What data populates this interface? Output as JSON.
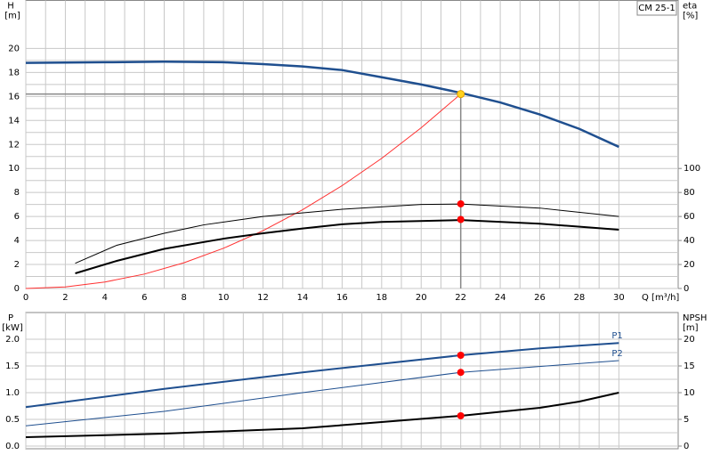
{
  "chart_data": [
    {
      "type": "line",
      "model": "CM 25-1",
      "ylabel": "H",
      "yunit": "[m]",
      "y2label": "eta",
      "y2unit": "[%]",
      "xlabel": "Q [m³/h]",
      "xlim": [
        0,
        33
      ],
      "xticks": [
        0,
        2,
        4,
        6,
        8,
        10,
        12,
        14,
        16,
        18,
        20,
        22,
        24,
        26,
        28,
        30
      ],
      "ylim": [
        0,
        24
      ],
      "yticks": [
        0,
        2,
        4,
        6,
        8,
        10,
        12,
        14,
        16,
        18,
        20
      ],
      "y2lim": [
        0,
        240
      ],
      "y2ticks": [
        0,
        20,
        40,
        60,
        80,
        100
      ],
      "grid": true,
      "minor_grid": true,
      "xtick_labels": true,
      "series": [
        {
          "color": "#1f4f8f",
          "line_width": 2.5,
          "x": [
            0,
            4,
            7,
            10,
            12,
            14,
            16,
            18,
            20,
            22,
            24,
            26,
            28,
            30
          ],
          "values": [
            18.8,
            18.85,
            18.9,
            18.85,
            18.7,
            18.5,
            18.2,
            17.6,
            17.0,
            16.3,
            15.5,
            14.5,
            13.3,
            11.8
          ]
        },
        {
          "color": "#ff3030",
          "line_width": 1,
          "x": [
            0,
            2,
            4,
            6,
            8,
            10,
            12,
            14,
            16,
            18,
            20,
            22
          ],
          "values": [
            0,
            0.13,
            0.54,
            1.2,
            2.14,
            3.35,
            4.82,
            6.56,
            8.57,
            10.84,
            13.39,
            16.2
          ]
        },
        {
          "color": "#000000",
          "line_width": 1,
          "axis": "y2",
          "x": [
            2.5,
            4.6,
            7,
            9,
            12,
            16,
            20,
            22,
            26,
            30
          ],
          "values": [
            21,
            36,
            46,
            53,
            60,
            66,
            70,
            70.4,
            67,
            60
          ]
        },
        {
          "color": "#000000",
          "line_width": 2,
          "axis": "y2",
          "x": [
            2.5,
            4.6,
            7,
            10,
            12,
            14,
            16,
            18,
            22,
            26,
            30
          ],
          "values": [
            12.6,
            23,
            33,
            41.5,
            46,
            50,
            53.5,
            55.5,
            57,
            54,
            49
          ]
        },
        {
          "color": "#ffd21f",
          "marker": true,
          "guides": true,
          "x": [
            22
          ],
          "values": [
            16.2
          ]
        },
        {
          "color": "#ff0000",
          "marker": true,
          "axis": "y2",
          "x": [
            22,
            22
          ],
          "values": [
            70.5,
            57.5
          ]
        }
      ]
    },
    {
      "type": "line",
      "ylabel": "P",
      "yunit": "[kW]",
      "y2label": "NPSH",
      "y2unit": "[m]",
      "xlim": [
        0,
        33
      ],
      "xticks": [
        0,
        2,
        4,
        6,
        8,
        10,
        12,
        14,
        16,
        18,
        20,
        22,
        24,
        26,
        28,
        30
      ],
      "ylim": [
        -0.05,
        2.5
      ],
      "yticks": [
        {
          "value": 0,
          "label": "0.0"
        },
        0.5,
        {
          "value": 1,
          "label": "1.0"
        },
        1.5,
        {
          "value": 2,
          "label": "2.0"
        }
      ],
      "y2lim": [
        -0.5,
        25
      ],
      "y2ticks": [
        0,
        5,
        10,
        15,
        20
      ],
      "grid": true,
      "minor_grid": true,
      "xtick_labels": false,
      "series": [
        {
          "name": "P1",
          "color": "#1f4f8f",
          "line_width": 2,
          "x": [
            0,
            7,
            14,
            22,
            26,
            30
          ],
          "values": [
            0.73,
            1.07,
            1.38,
            1.7,
            1.83,
            1.93
          ]
        },
        {
          "name": "P2",
          "color": "#1f4f8f",
          "line_width": 1,
          "x": [
            0,
            7,
            14,
            22,
            30
          ],
          "values": [
            0.38,
            0.65,
            1.0,
            1.38,
            1.6
          ]
        },
        {
          "color": "#000000",
          "line_width": 2,
          "axis": "y2",
          "x": [
            0,
            7,
            14,
            18,
            22,
            26,
            28,
            30
          ],
          "values": [
            1.67,
            2.33,
            3.33,
            4.5,
            5.67,
            7.17,
            8.33,
            10
          ]
        },
        {
          "color": "#ff0000",
          "marker": true,
          "x": [
            22,
            22
          ],
          "values": [
            1.7,
            1.38
          ]
        },
        {
          "color": "#ff0000",
          "marker": true,
          "axis": "y2",
          "x": [
            22
          ],
          "values": [
            5.67
          ]
        }
      ]
    }
  ]
}
